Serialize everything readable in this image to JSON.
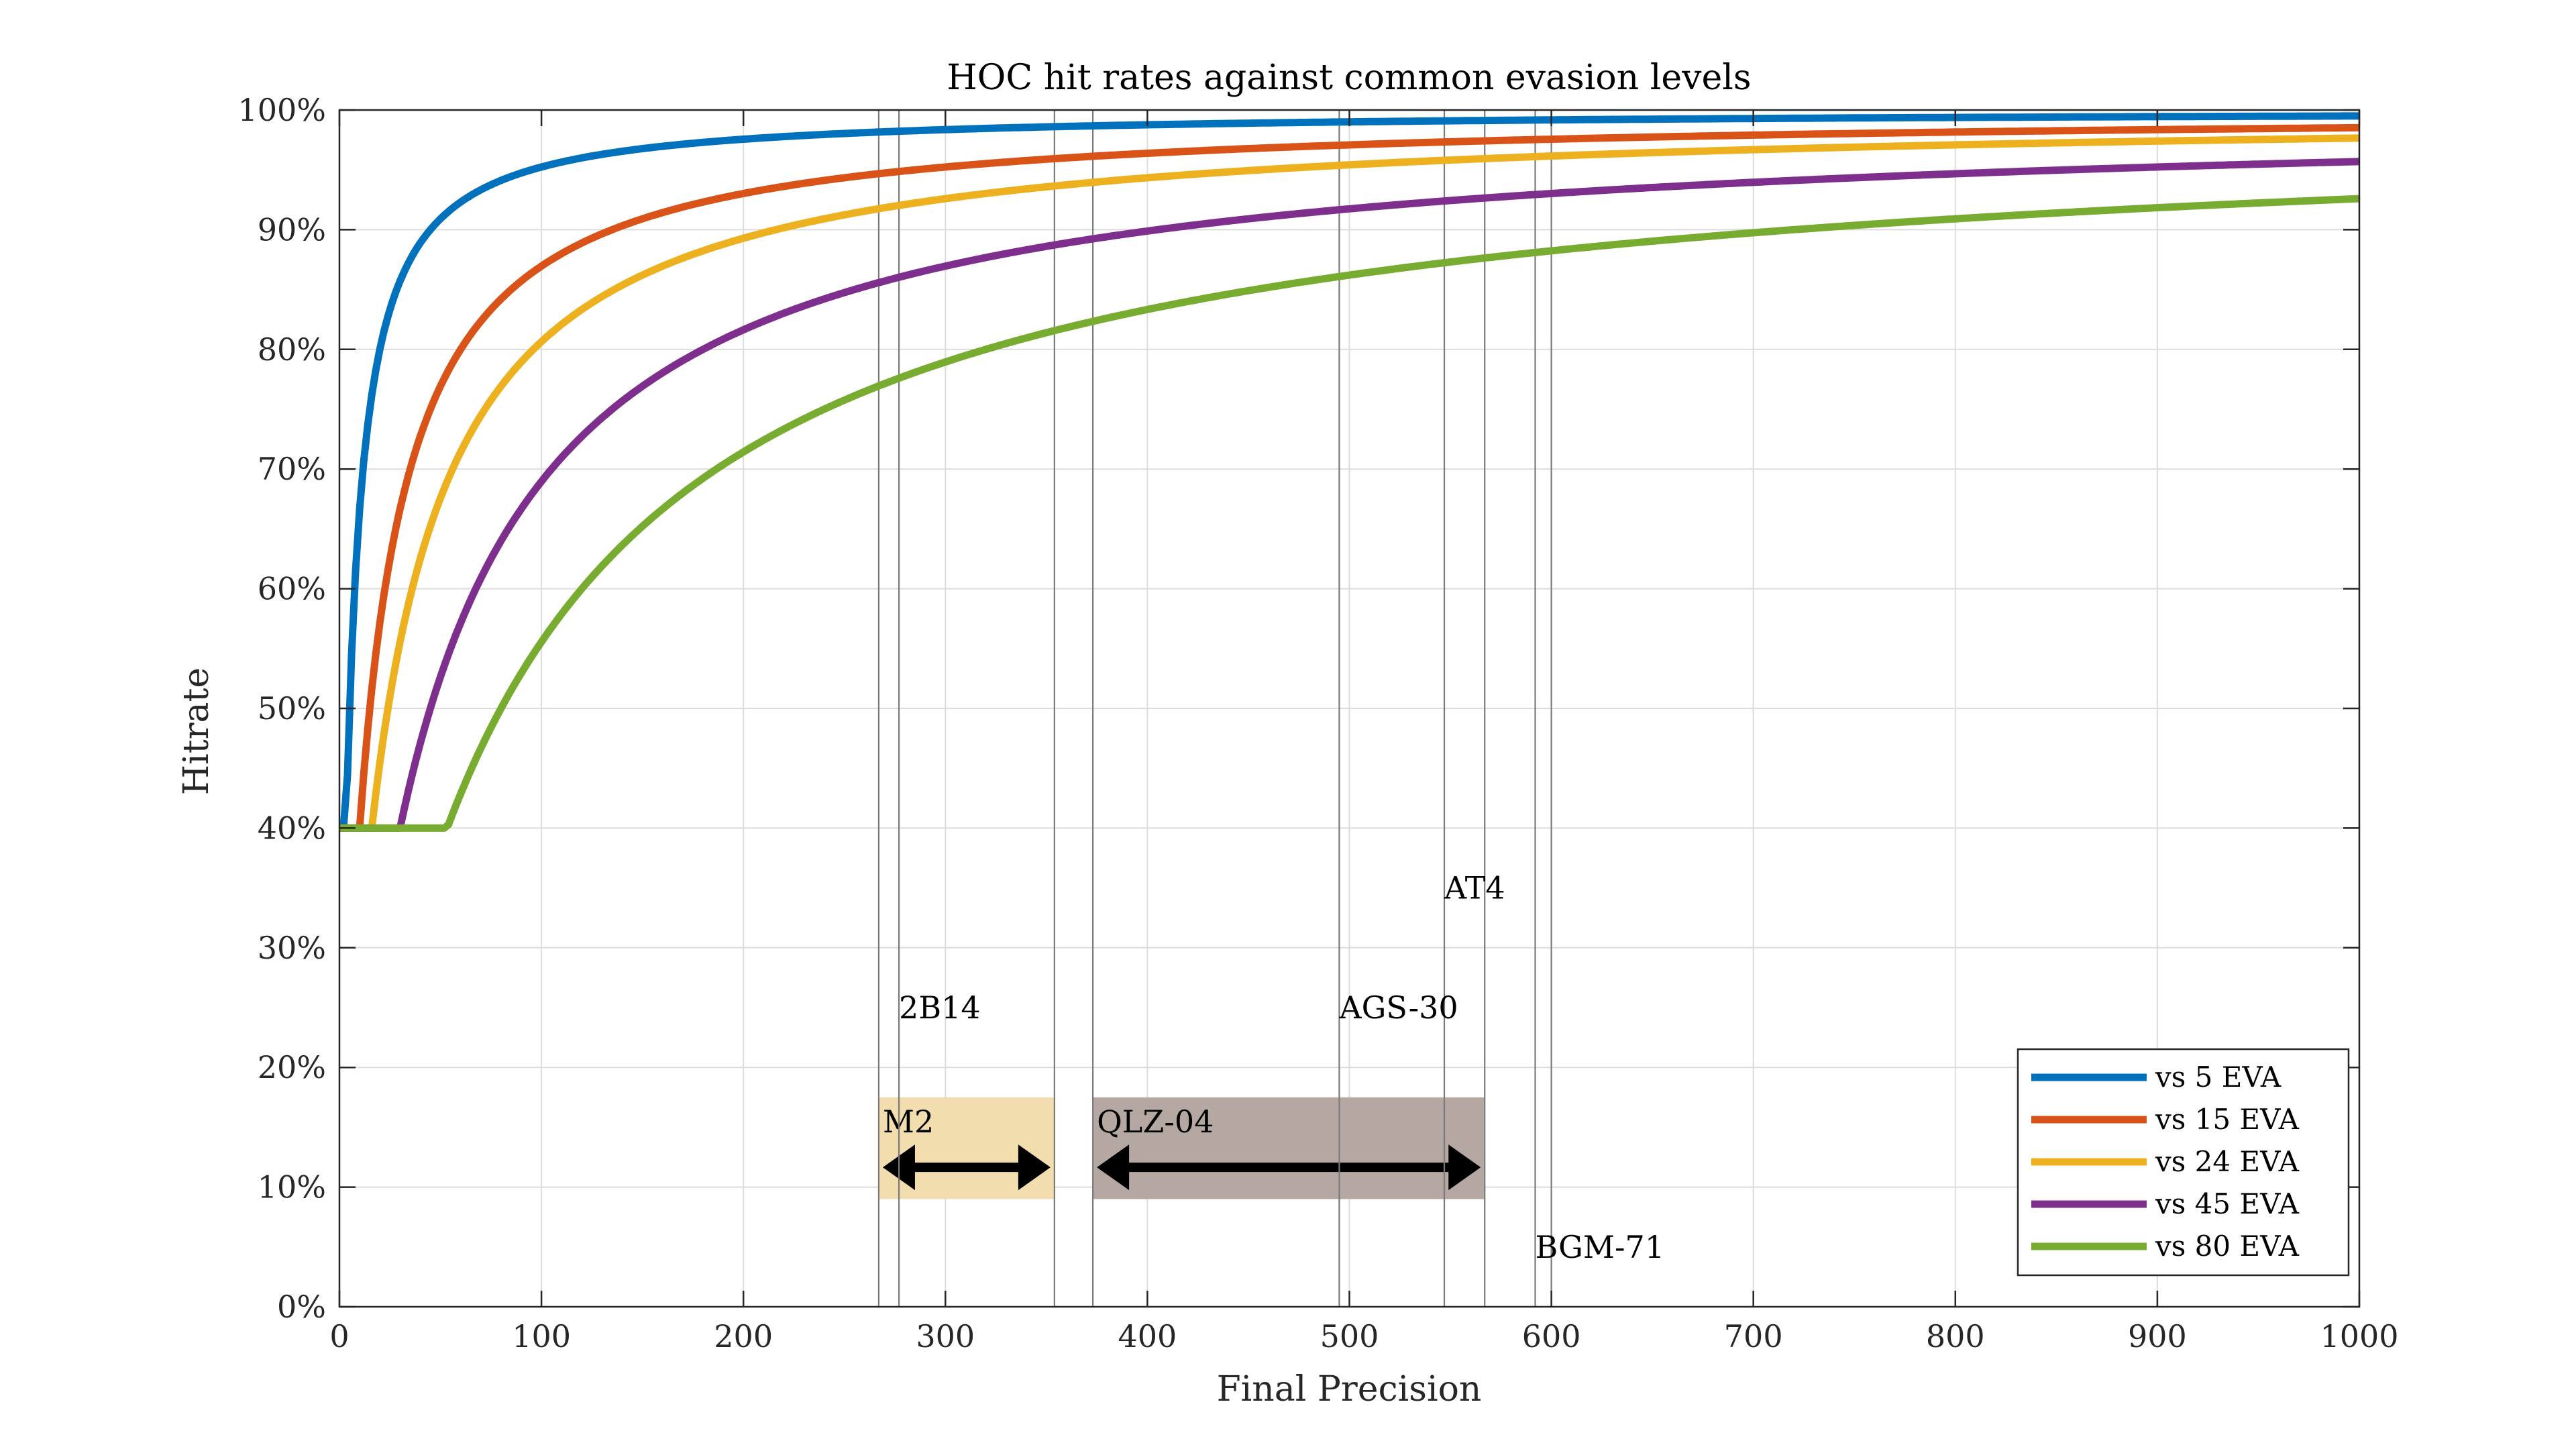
{
  "chart_data": {
    "type": "line",
    "title": "HOC hit rates against common evasion levels",
    "xlabel": "Final Precision",
    "ylabel": "Hitrate",
    "xlim": [
      0,
      1000
    ],
    "ylim": [
      0,
      100
    ],
    "x_ticks": [
      "0",
      "100",
      "200",
      "300",
      "400",
      "500",
      "600",
      "700",
      "800",
      "900",
      "1000"
    ],
    "y_ticks": [
      "0%",
      "10%",
      "20%",
      "30%",
      "40%",
      "50%",
      "60%",
      "70%",
      "80%",
      "90%",
      "100%"
    ],
    "grid": true,
    "legend_position": "bottom-right",
    "y_floor": 40,
    "series": [
      {
        "name": "vs 5 EVA",
        "evasion": 5,
        "color": "#0072BD"
      },
      {
        "name": "vs 15 EVA",
        "evasion": 15,
        "color": "#D95319"
      },
      {
        "name": "vs 24 EVA",
        "evasion": 24,
        "color": "#EDB120"
      },
      {
        "name": "vs 45 EVA",
        "evasion": 45,
        "color": "#7E2F8E"
      },
      {
        "name": "vs 80 EVA",
        "evasion": 80,
        "color": "#77AC30"
      }
    ],
    "reference_lines_x": [
      267,
      277,
      354,
      373,
      495,
      547,
      567,
      592,
      600
    ],
    "annotations": [
      {
        "label": "2B14",
        "x": 277,
        "y": 25
      },
      {
        "label": "AGS-30",
        "x": 495,
        "y": 25
      },
      {
        "label": "AT4",
        "x": 547,
        "y": 35
      },
      {
        "label": "BGM-71",
        "x": 592,
        "y": 5
      }
    ],
    "ranges": [
      {
        "label": "M2",
        "x0": 267,
        "x1": 354,
        "y0": 9,
        "y1": 17.5,
        "color": "#F2DDAE",
        "text_color": "#6b5a3a"
      },
      {
        "label": "QLZ-04",
        "x0": 373,
        "x1": 567,
        "y0": 9,
        "y1": 17.5,
        "color": "#B5A8A3",
        "text_color": "#000000"
      }
    ]
  }
}
